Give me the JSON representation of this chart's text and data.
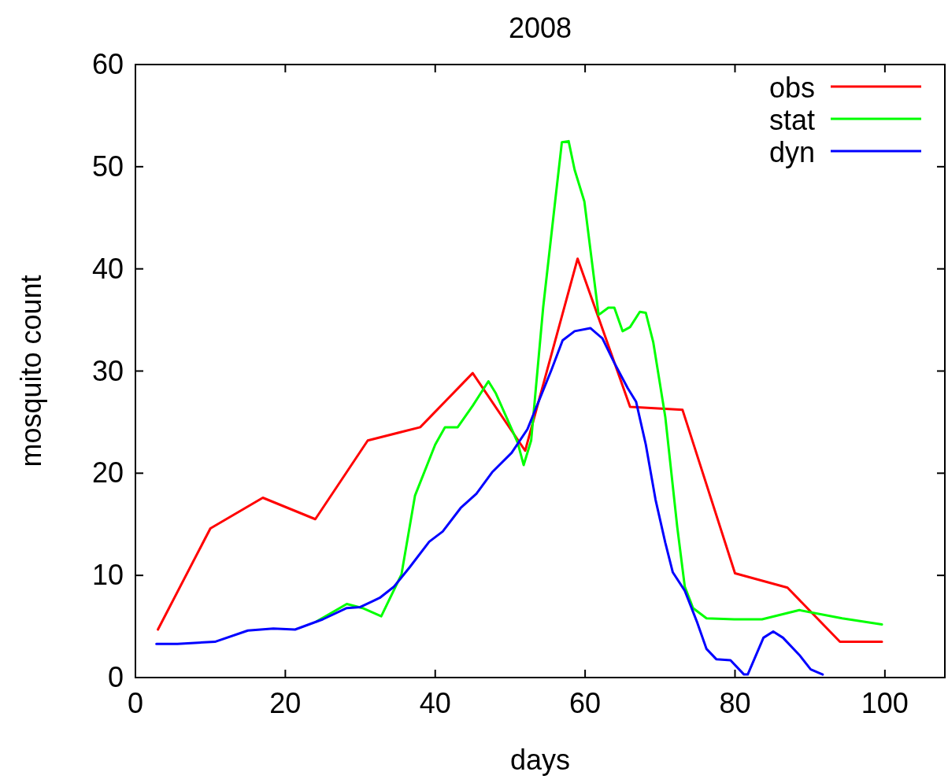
{
  "chart_data": {
    "type": "line",
    "title": "2008",
    "xlabel": "days",
    "ylabel": "mosquito count",
    "xlim": [
      0,
      108
    ],
    "ylim": [
      0,
      60
    ],
    "xticks": [
      0,
      20,
      40,
      60,
      80,
      100
    ],
    "yticks": [
      0,
      10,
      20,
      30,
      40,
      50,
      60
    ],
    "grid": false,
    "legend": "top right",
    "marker": "none",
    "line_style": "solid",
    "series": [
      {
        "name": "obs",
        "color": "#ff0000",
        "x": [
          3,
          10,
          17,
          24,
          31,
          38,
          45,
          52,
          59,
          66,
          73,
          80,
          87,
          94,
          99.6
        ],
        "values": [
          4.7,
          14.6,
          17.6,
          15.5,
          23.2,
          24.5,
          29.8,
          22.2,
          41,
          26.5,
          26.2,
          10.2,
          8.8,
          3.5,
          3.5
        ]
      },
      {
        "name": "stat",
        "color": "#00ff00",
        "x": [
          24.2,
          28.2,
          30.3,
          32.8,
          35.5,
          37.3,
          40,
          41.3,
          43,
          45,
          47.1,
          48.1,
          51,
          51.8,
          52.8,
          54.4,
          56,
          56.9,
          57.8,
          58.6,
          59.9,
          61.8,
          63.1,
          63.9,
          65,
          66,
          67.3,
          68.1,
          69.1,
          70.7,
          72.3,
          73.3,
          74.4,
          76.2,
          79.9,
          83.6,
          88.6,
          94.3,
          99.6
        ],
        "values": [
          5.5,
          7.2,
          6.8,
          6,
          10.1,
          17.8,
          22.8,
          24.5,
          24.5,
          26.6,
          29,
          27.8,
          23,
          20.8,
          23.2,
          36.2,
          46.6,
          52.4,
          52.5,
          49.7,
          46.6,
          35.5,
          36.2,
          36.2,
          33.9,
          34.3,
          35.8,
          35.7,
          32.8,
          25.5,
          14.7,
          8.9,
          6.8,
          5.8,
          5.7,
          5.7,
          6.6,
          5.8,
          5.2
        ]
      },
      {
        "name": "dyn",
        "color": "#0000ff",
        "x": [
          2.8,
          5.6,
          10.6,
          15,
          18.4,
          21.3,
          25,
          28.2,
          30,
          32.6,
          34.5,
          36.6,
          39.2,
          41,
          43.4,
          45.5,
          47.6,
          50.2,
          52.3,
          55.5,
          57,
          58.6,
          60.7,
          62.3,
          63.9,
          65.7,
          66.8,
          68.1,
          69.4,
          70.7,
          71.7,
          73.3,
          74.9,
          76.2,
          77.5,
          79.4,
          81.2,
          81.7,
          83.8,
          85.1,
          86.4,
          88.6,
          90.1,
          91.7
        ],
        "values": [
          3.3,
          3.3,
          3.5,
          4.6,
          4.8,
          4.7,
          5.7,
          6.8,
          6.9,
          7.8,
          8.9,
          10.8,
          13.3,
          14.3,
          16.6,
          18,
          20.1,
          22,
          24.3,
          30.1,
          33,
          33.9,
          34.2,
          33.2,
          30.8,
          28.3,
          27,
          22.8,
          17.4,
          13.2,
          10.3,
          8.5,
          5.5,
          2.8,
          1.8,
          1.7,
          0.3,
          0.3,
          3.9,
          4.5,
          3.9,
          2.2,
          0.8,
          0.3
        ]
      }
    ]
  }
}
